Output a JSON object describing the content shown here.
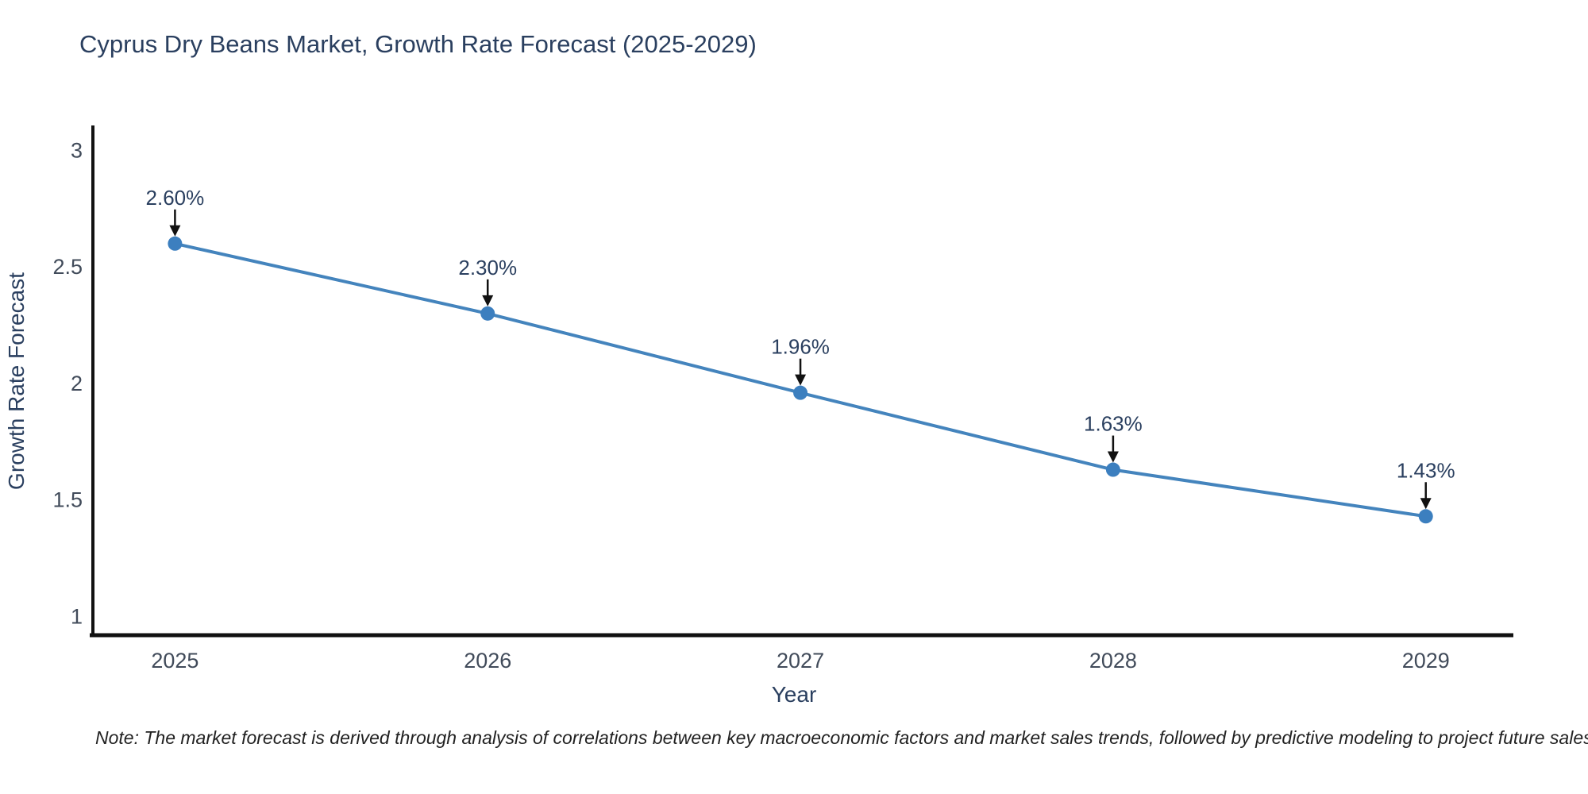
{
  "title": "Cyprus Dry Beans Market, Growth Rate Forecast (2025-2029)",
  "note": "Note: The market forecast is derived through analysis of correlations between key macroeconomic factors and market sales trends, followed by predictive modeling to project future sales",
  "chart_data": {
    "type": "line",
    "title": "Cyprus Dry Beans Market, Growth Rate Forecast (2025-2029)",
    "xlabel": "Year",
    "ylabel": "Growth Rate Forecast",
    "x": [
      2025,
      2026,
      2027,
      2028,
      2029
    ],
    "values": [
      2.6,
      2.3,
      1.96,
      1.63,
      1.43
    ],
    "point_labels": [
      "2.60%",
      "2.30%",
      "1.96%",
      "1.63%",
      "1.43%"
    ],
    "x_tick_labels": [
      "2025",
      "2026",
      "2027",
      "2028",
      "2029"
    ],
    "y_ticks": [
      1,
      1.5,
      2,
      2.5,
      3
    ],
    "y_tick_labels": [
      "1",
      "1.5",
      "2",
      "2.5",
      "3"
    ],
    "xlim": [
      2024.74,
      2029.28
    ],
    "ylim": [
      0.92,
      3.1
    ],
    "grid": false,
    "legend": "none",
    "colors": {
      "line": "#4484bd",
      "marker": "#3c7fbf",
      "axis": "#111111",
      "title": "#2a3f5f",
      "axis_title": "#2a3f5f",
      "tick_label": "#414b5a",
      "data_label": "#2a3f5f",
      "annotation_arrow": "#111111",
      "note": "#222222",
      "background": "#ffffff"
    }
  }
}
